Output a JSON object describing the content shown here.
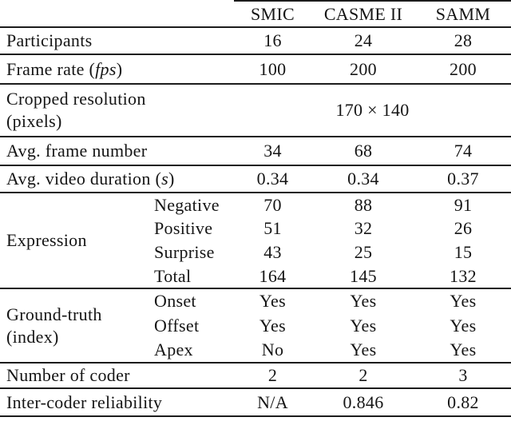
{
  "table": {
    "columns": [
      "SMIC",
      "CASME II",
      "SAMM"
    ],
    "participants": {
      "label": "Participants",
      "values": [
        "16",
        "24",
        "28"
      ]
    },
    "frame_rate": {
      "label_prefix": "Frame rate (",
      "label_italic": "fps",
      "label_suffix": ")",
      "values": [
        "100",
        "200",
        "200"
      ]
    },
    "cropped_resolution": {
      "label_line1": "Cropped resolution",
      "label_line2": "(pixels)",
      "value": "170 × 140"
    },
    "avg_frame_number": {
      "label": "Avg. frame number",
      "values": [
        "34",
        "68",
        "74"
      ]
    },
    "avg_video_duration": {
      "label_prefix": "Avg. video duration (",
      "label_italic": "s",
      "label_suffix": ")",
      "values": [
        "0.34",
        "0.34",
        "0.37"
      ]
    },
    "expression": {
      "label": "Expression",
      "rows": [
        {
          "sublabel": "Negative",
          "values": [
            "70",
            "88",
            "91"
          ]
        },
        {
          "sublabel": "Positive",
          "values": [
            "51",
            "32",
            "26"
          ]
        },
        {
          "sublabel": "Surprise",
          "values": [
            "43",
            "25",
            "15"
          ]
        },
        {
          "sublabel": "Total",
          "values": [
            "164",
            "145",
            "132"
          ]
        }
      ]
    },
    "ground_truth": {
      "label_line1": "Ground-truth",
      "label_line2": "(index)",
      "rows": [
        {
          "sublabel": "Onset",
          "values": [
            "Yes",
            "Yes",
            "Yes"
          ]
        },
        {
          "sublabel": "Offset",
          "values": [
            "Yes",
            "Yes",
            "Yes"
          ]
        },
        {
          "sublabel": "Apex",
          "values": [
            "No",
            "Yes",
            "Yes"
          ]
        }
      ]
    },
    "number_of_coder": {
      "label": "Number of coder",
      "values": [
        "2",
        "2",
        "3"
      ]
    },
    "inter_coder_reliability": {
      "label": "Inter-coder reliability",
      "values": [
        "N/A",
        "0.846",
        "0.82"
      ]
    }
  }
}
